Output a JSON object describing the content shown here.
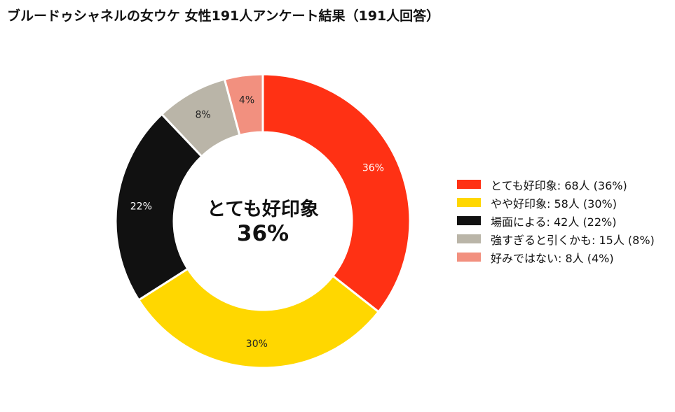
{
  "title": "ブルードゥシャネルの女ウケ 女性191人アンケート結果（191人回答）",
  "center": {
    "label": "とても好印象",
    "percent": "36%"
  },
  "chart_data": {
    "type": "pie",
    "variant": "donut",
    "title": "ブルードゥシャネルの女ウケ 女性191人アンケート結果（191人回答）",
    "total_respondents": 191,
    "legend_position": "right",
    "slices": [
      {
        "label": "とても好印象",
        "count": 68,
        "percent": 36,
        "pct_label": "36%",
        "legend": "とても好印象:  68人 (36%)",
        "color": "#ff3114",
        "text_color": "#ffffff"
      },
      {
        "label": "やや好印象",
        "count": 58,
        "percent": 30,
        "pct_label": "30%",
        "legend": "やや好印象:  58人 (30%)",
        "color": "#ffd700",
        "text_color": "#222222"
      },
      {
        "label": "場面による",
        "count": 42,
        "percent": 22,
        "pct_label": "22%",
        "legend": "場面による:  42人 (22%)",
        "color": "#111111",
        "text_color": "#ffffff"
      },
      {
        "label": "強すぎると引くかも",
        "count": 15,
        "percent": 8,
        "pct_label": "8%",
        "legend": "強すぎると引くかも:  15人 (8%)",
        "color": "#bab5a8",
        "text_color": "#222222"
      },
      {
        "label": "好みではない",
        "count": 8,
        "percent": 4,
        "pct_label": "4%",
        "legend": "好みではない:  8人 (4%)",
        "color": "#f2907f",
        "text_color": "#222222"
      }
    ]
  }
}
